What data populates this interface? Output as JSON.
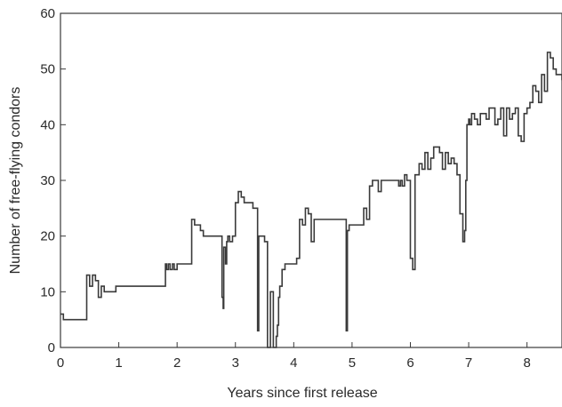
{
  "chart_data": {
    "type": "line",
    "title": "",
    "xlabel": "Years since first release",
    "ylabel": "Number of free-flying condors",
    "xlim": [
      0,
      8.6
    ],
    "ylim": [
      0,
      60
    ],
    "grid": false,
    "legend": "none",
    "x_ticks": [
      0,
      1,
      2,
      3,
      4,
      5,
      6,
      7,
      8
    ],
    "y_ticks": [
      0,
      10,
      20,
      30,
      40,
      50,
      60
    ],
    "x_tick_labels": [
      "0",
      "1",
      "2",
      "3",
      "4",
      "5",
      "6",
      "7",
      "8"
    ],
    "y_tick_labels": [
      "0",
      "10",
      "20",
      "30",
      "40",
      "50",
      "60"
    ],
    "line_color": "#3a3a3a",
    "series": [
      {
        "step": true,
        "x": [
          0,
          0.05,
          0.1,
          0.4,
          0.45,
          0.5,
          0.55,
          0.6,
          0.65,
          0.7,
          0.75,
          0.95,
          1.8,
          1.82,
          1.85,
          1.88,
          1.92,
          1.95,
          2.0,
          2.25,
          2.3,
          2.35,
          2.4,
          2.45,
          2.75,
          2.77,
          2.79,
          2.8,
          2.83,
          2.85,
          2.87,
          2.9,
          2.95,
          3.0,
          3.05,
          3.1,
          3.15,
          3.2,
          3.3,
          3.38,
          3.4,
          3.45,
          3.5,
          3.55,
          3.6,
          3.65,
          3.7,
          3.72,
          3.74,
          3.76,
          3.8,
          3.85,
          3.9,
          4.05,
          4.1,
          4.15,
          4.2,
          4.25,
          4.3,
          4.35,
          4.9,
          4.9,
          4.92,
          4.95,
          5.1,
          5.2,
          5.25,
          5.3,
          5.35,
          5.4,
          5.45,
          5.5,
          5.8,
          5.83,
          5.86,
          5.9,
          5.94,
          6.0,
          6.04,
          6.08,
          6.15,
          6.2,
          6.25,
          6.3,
          6.35,
          6.4,
          6.5,
          6.55,
          6.6,
          6.65,
          6.7,
          6.75,
          6.8,
          6.85,
          6.9,
          6.93,
          6.95,
          6.97,
          7.0,
          7.02,
          7.05,
          7.1,
          7.15,
          7.2,
          7.3,
          7.35,
          7.45,
          7.5,
          7.55,
          7.6,
          7.65,
          7.7,
          7.75,
          7.8,
          7.85,
          7.9,
          7.95,
          8.0,
          8.05,
          8.1,
          8.15,
          8.2,
          8.25,
          8.3,
          8.35,
          8.4,
          8.45,
          8.5,
          8.55,
          8.6
        ],
        "y": [
          6,
          5,
          5,
          5,
          13,
          11,
          13,
          12,
          9,
          11,
          10,
          11,
          15,
          14,
          15,
          14,
          15,
          14,
          15,
          23,
          22,
          22,
          21,
          20,
          20,
          9,
          7,
          18,
          15,
          19,
          20,
          19,
          20,
          26,
          28,
          27,
          26,
          26,
          25,
          3,
          20,
          20,
          19,
          0,
          10,
          0,
          2,
          4,
          9,
          11,
          14,
          15,
          15,
          16,
          23,
          22,
          25,
          24,
          19,
          23,
          22,
          3,
          21,
          22,
          22,
          25,
          23,
          29,
          30,
          30,
          28,
          30,
          29,
          30,
          29,
          31,
          30,
          16,
          14,
          31,
          33,
          32,
          35,
          32,
          34,
          36,
          35,
          32,
          35,
          33,
          34,
          33,
          31,
          24,
          19,
          21,
          30,
          40,
          41,
          40,
          42,
          41,
          40,
          42,
          41,
          43,
          40,
          41,
          43,
          38,
          43,
          41,
          42,
          43,
          38,
          37,
          42,
          43,
          44,
          47,
          46,
          44,
          49,
          46,
          53,
          52,
          50,
          49,
          49,
          48
        ]
      }
    ]
  }
}
